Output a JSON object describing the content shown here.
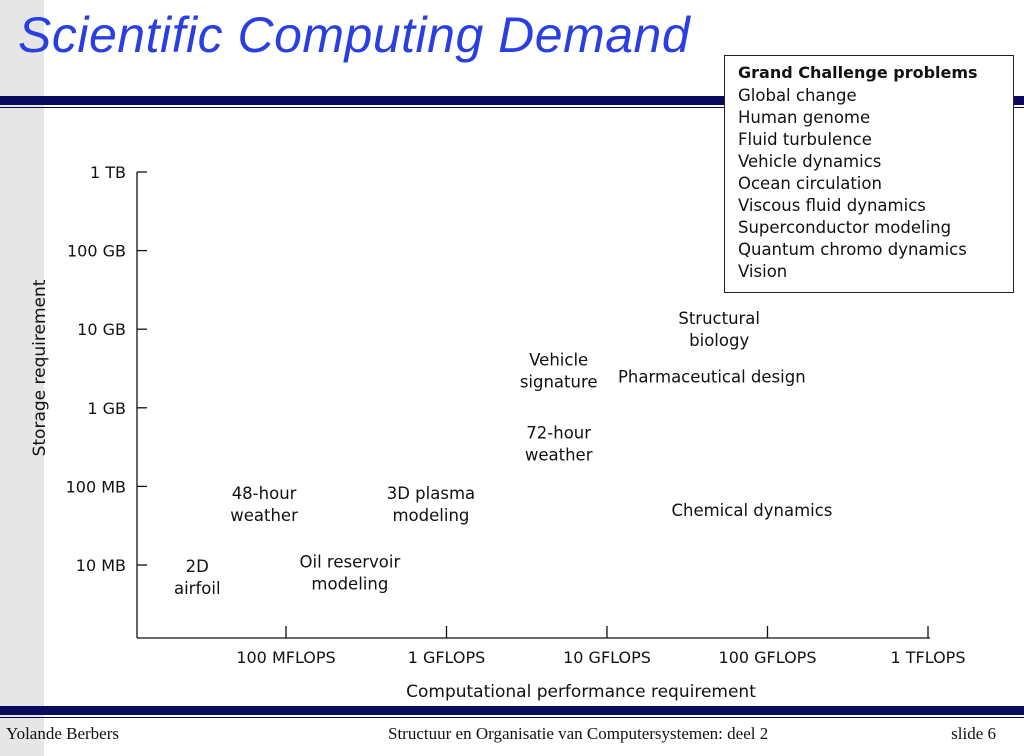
{
  "slide": {
    "title": "Scientific Computing Demand",
    "footer_left": "Yolande Berbers",
    "footer_center": "Structuur en Organisatie van Computersystemen: deel 2",
    "footer_right": "slide 6"
  },
  "legend_box": {
    "title": "Grand Challenge problems",
    "items": [
      "Global change",
      "Human genome",
      "Fluid turbulence",
      "Vehicle dynamics",
      "Ocean circulation",
      "Viscous fluid dynamics",
      "Superconductor modeling",
      "Quantum chromo dynamics",
      "Vision"
    ]
  },
  "chart_data": {
    "type": "scatter",
    "title": "",
    "xlabel": "Computational performance requirement",
    "ylabel": "Storage requirement",
    "x_ticks": [
      "100 MFLOPS",
      "1 GFLOPS",
      "10 GFLOPS",
      "100 GFLOPS",
      "1 TFLOPS"
    ],
    "y_ticks": [
      "10 MB",
      "100 MB",
      "1 GB",
      "10 GB",
      "100 GB",
      "1 TB"
    ],
    "x_scale": "log",
    "y_scale": "log",
    "grid": false,
    "points": [
      {
        "label": [
          "2D",
          "airfoil"
        ],
        "x": 28,
        "y": 7
      },
      {
        "label": [
          "48-hour",
          "weather"
        ],
        "x": 73,
        "y": 60
      },
      {
        "label": [
          "Oil reservoir",
          "modeling"
        ],
        "x": 250,
        "y": 8
      },
      {
        "label": [
          "3D plasma",
          "modeling"
        ],
        "x": 800,
        "y": 60
      },
      {
        "label": [
          "Vehicle",
          "signature"
        ],
        "x": 5000,
        "y": 3000
      },
      {
        "label": [
          "72-hour",
          "weather"
        ],
        "x": 5000,
        "y": 350
      },
      {
        "label": [
          "Structural",
          "biology"
        ],
        "x": 50000,
        "y": 10000
      },
      {
        "label": [
          "Pharmaceutical design"
        ],
        "x": 45000,
        "y": 2500
      },
      {
        "label": [
          "Chemical dynamics"
        ],
        "x": 80000,
        "y": 50
      }
    ]
  }
}
